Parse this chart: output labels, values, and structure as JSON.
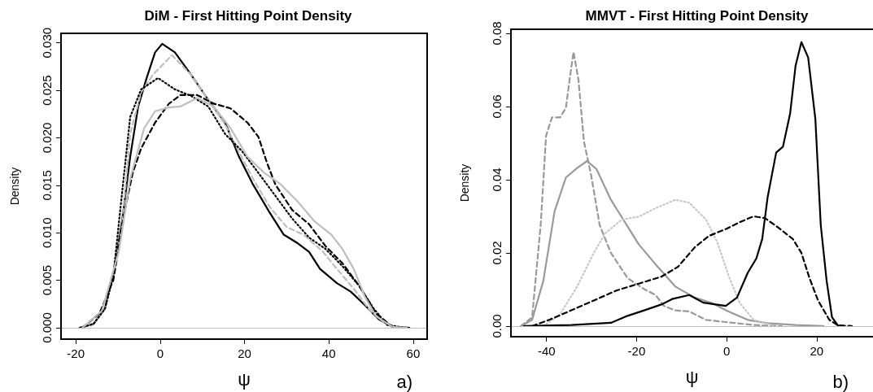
{
  "chart_data": [
    {
      "type": "line",
      "title": "DiM - First Hitting Point Density",
      "xlabel": "ψ",
      "ylabel": "Density",
      "annotations": [
        "a)"
      ],
      "xlim": [
        -23.5,
        63.3
      ],
      "ylim": [
        -0.0012,
        0.031
      ],
      "xticks": [
        -20,
        0,
        20,
        40,
        60
      ],
      "yticks": [
        {
          "value": 0,
          "label": "0.000"
        },
        {
          "value": 0.005,
          "label": "0.005"
        },
        {
          "value": 0.01,
          "label": "0.010"
        },
        {
          "value": 0.015,
          "label": "0.015"
        },
        {
          "value": 0.02,
          "label": "0.020"
        },
        {
          "value": 0.025,
          "label": "0.025"
        },
        {
          "value": 0.03,
          "label": "0.030"
        }
      ],
      "ref_lines": [
        {
          "axis": "y",
          "value": 0,
          "color": "#bebebe"
        }
      ],
      "series": [
        {
          "color": "#000000",
          "line_style": "solid",
          "x": [
            -19.1,
            -15.8,
            -13.1,
            -11.1,
            -9.1,
            -7.1,
            -5.2,
            -3.2,
            -1.2,
            0.5,
            3.5,
            7.4,
            11.4,
            15.4,
            18.7,
            22,
            26,
            29.3,
            32.6,
            35.3,
            37.9,
            41.9,
            45.2,
            48.5,
            51.8,
            55.1,
            58.5
          ],
          "values": [
            0,
            0.0004,
            0.002,
            0.0056,
            0.011,
            0.018,
            0.0233,
            0.0263,
            0.029,
            0.0299,
            0.029,
            0.0266,
            0.024,
            0.0216,
            0.018,
            0.0151,
            0.0121,
            0.0098,
            0.0089,
            0.008,
            0.0062,
            0.0047,
            0.0038,
            0.0024,
            0.0009,
            0.0001,
            0
          ]
        },
        {
          "color": "#bebebe",
          "line_style": "dashed",
          "x": [
            -19,
            -15.8,
            -13.1,
            -11.1,
            -9.1,
            -7.1,
            -4.5,
            -1.8,
            2.8,
            7.4,
            11.4,
            15.4,
            18.7,
            22,
            26,
            30,
            34,
            38.6,
            41.9,
            45.9,
            49.8,
            53.8,
            57.5
          ],
          "values": [
            0,
            0.0004,
            0.002,
            0.0055,
            0.0105,
            0.0204,
            0.0248,
            0.0266,
            0.0287,
            0.0266,
            0.024,
            0.0214,
            0.0185,
            0.0157,
            0.0127,
            0.0106,
            0.0098,
            0.008,
            0.0062,
            0.0041,
            0.0018,
            0.0003,
            0
          ]
        },
        {
          "color": "#000000",
          "line_style": "dotted",
          "x": [
            -19,
            -15.8,
            -13.1,
            -11.1,
            -9.1,
            -7.1,
            -4.5,
            -0.5,
            3.5,
            7.4,
            11.4,
            15.4,
            19.4,
            23.3,
            27.3,
            31.3,
            35.3,
            39.2,
            43.2,
            47.2,
            50.5,
            53.8,
            58
          ],
          "values": [
            0,
            0.0004,
            0.002,
            0.0055,
            0.0139,
            0.0222,
            0.0251,
            0.0263,
            0.0251,
            0.0244,
            0.0233,
            0.0204,
            0.0186,
            0.0163,
            0.0139,
            0.0115,
            0.0095,
            0.0083,
            0.0065,
            0.0044,
            0.0021,
            0.0003,
            0
          ]
        },
        {
          "color": "#000000",
          "line_style": "dashed",
          "x": [
            -18.4,
            -14.4,
            -11.1,
            -8.5,
            -6.5,
            -4.5,
            -1.2,
            2.1,
            4.8,
            8.8,
            12.7,
            16.7,
            20.7,
            23.3,
            25.3,
            27.3,
            31.3,
            35.3,
            39.2,
            43.2,
            47.2,
            51.2,
            55.1,
            59.1
          ],
          "values": [
            0,
            0.0015,
            0.005,
            0.0121,
            0.0163,
            0.0189,
            0.0216,
            0.0236,
            0.0245,
            0.0245,
            0.0236,
            0.0231,
            0.0216,
            0.0201,
            0.0174,
            0.0151,
            0.0124,
            0.0109,
            0.0086,
            0.0068,
            0.0044,
            0.0015,
            0.0001,
            0
          ]
        },
        {
          "color": "#bebebe",
          "line_style": "solid",
          "x": [
            -18.4,
            -13.8,
            -9.8,
            -7.1,
            -3.8,
            -1.2,
            2.1,
            4.8,
            8.8,
            12.7,
            16.7,
            20.7,
            24.7,
            28.6,
            32.6,
            36.6,
            40.6,
            43.2,
            45.9,
            48.5,
            51.2,
            55.1,
            58.5
          ],
          "values": [
            0,
            0.0018,
            0.008,
            0.0157,
            0.021,
            0.0228,
            0.0232,
            0.0233,
            0.0242,
            0.0233,
            0.021,
            0.018,
            0.0163,
            0.0151,
            0.0133,
            0.0112,
            0.0098,
            0.0083,
            0.0062,
            0.0033,
            0.0012,
            0.0001,
            0
          ]
        }
      ]
    },
    {
      "type": "line",
      "title": "MMVT - First Hitting Point Density",
      "xlabel": "ψ",
      "ylabel": "Density",
      "annotations": [
        "b)"
      ],
      "xlim": [
        -47.9,
        32.5
      ],
      "ylim": [
        -0.0029,
        0.0811
      ],
      "xticks": [
        -40,
        -20,
        0,
        20
      ],
      "yticks": [
        {
          "value": 0,
          "label": "0.00"
        },
        {
          "value": 0.02,
          "label": "0.02"
        },
        {
          "value": 0.04,
          "label": "0.04"
        },
        {
          "value": 0.06,
          "label": "0.06"
        },
        {
          "value": 0.08,
          "label": "0.08"
        }
      ],
      "ref_lines": [
        {
          "axis": "y",
          "value": 0,
          "color": "#bebebe"
        }
      ],
      "series": [
        {
          "color": "#999999",
          "line_style": "dashed",
          "x": [
            -45.7,
            -43.2,
            -41.3,
            -40.1,
            -38.8,
            -37,
            -35.7,
            -34.8,
            -34,
            -32.9,
            -31.7,
            -30.1,
            -28.2,
            -25.7,
            -22,
            -18.3,
            -15.8,
            -13.9,
            -11.4,
            -8.3,
            -4.6,
            -0.2,
            6,
            12.2
          ],
          "values": [
            0,
            0.0024,
            0.0276,
            0.052,
            0.057,
            0.057,
            0.0596,
            0.068,
            0.0749,
            0.0673,
            0.0505,
            0.0413,
            0.0276,
            0.02,
            0.0131,
            0.0101,
            0.0085,
            0.0055,
            0.0043,
            0.004,
            0.0017,
            0.0011,
            0.0003,
            0
          ]
        },
        {
          "color": "#999999",
          "line_style": "solid",
          "x": [
            -45.7,
            -43.2,
            -40.7,
            -38.2,
            -35.7,
            -33.2,
            -31,
            -28.9,
            -25.7,
            -22.6,
            -19.5,
            -15.8,
            -11.4,
            -7.1,
            -3.3,
            0.4,
            4.7,
            9.1,
            15.3,
            21.5
          ],
          "values": [
            0,
            0.0017,
            0.0124,
            0.0314,
            0.0406,
            0.0432,
            0.0451,
            0.0429,
            0.0345,
            0.0284,
            0.0223,
            0.0169,
            0.0108,
            0.0078,
            0.0063,
            0.004,
            0.0017,
            0.0008,
            0.0003,
            0
          ]
        },
        {
          "color": "#c8c8c8",
          "line_style": "dotted",
          "x": [
            -40.7,
            -37,
            -33.2,
            -29.5,
            -27,
            -23.3,
            -19.5,
            -15.8,
            -11.4,
            -8.3,
            -4.6,
            -2.1,
            0.4,
            2.9,
            6,
            10.3
          ],
          "values": [
            0,
            0.0032,
            0.0108,
            0.02,
            0.0253,
            0.0291,
            0.0299,
            0.0322,
            0.0345,
            0.0337,
            0.0291,
            0.023,
            0.0139,
            0.0063,
            0.0017,
            0.0002
          ]
        },
        {
          "color": "#000000",
          "line_style": "dashed",
          "x": [
            -43.2,
            -39.4,
            -34.5,
            -29.5,
            -24.5,
            -19.5,
            -14.5,
            -10.8,
            -7.1,
            -4,
            -0.2,
            2.9,
            6,
            8.5,
            11.6,
            14.7,
            16.6,
            18.4,
            20.3,
            22.8,
            24.7,
            27.8
          ],
          "values": [
            0,
            0.0017,
            0.0043,
            0.007,
            0.0097,
            0.0116,
            0.0135,
            0.0162,
            0.0215,
            0.0246,
            0.0265,
            0.0284,
            0.03,
            0.0295,
            0.0268,
            0.0238,
            0.02,
            0.0131,
            0.007,
            0.0017,
            0.0002,
            0
          ]
        },
        {
          "color": "#000000",
          "line_style": "solid",
          "x": [
            -45,
            -34.5,
            -25.7,
            -22,
            -18.3,
            -14.5,
            -12.1,
            -8.3,
            -5.2,
            -0.2,
            2.3,
            4.7,
            6.6,
            7.9,
            9.1,
            11,
            12.5,
            14.1,
            15.3,
            16.6,
            18.1,
            19.7,
            20.9,
            22.2,
            23.4,
            24.7,
            26
          ],
          "values": [
            0,
            0.0003,
            0.0009,
            0.0028,
            0.0043,
            0.0059,
            0.0074,
            0.0085,
            0.0064,
            0.0055,
            0.0078,
            0.0146,
            0.0185,
            0.0238,
            0.0352,
            0.0474,
            0.049,
            0.0581,
            0.0711,
            0.0776,
            0.0734,
            0.0566,
            0.0276,
            0.0124,
            0.0024,
            0.0002,
            0
          ]
        }
      ]
    }
  ]
}
